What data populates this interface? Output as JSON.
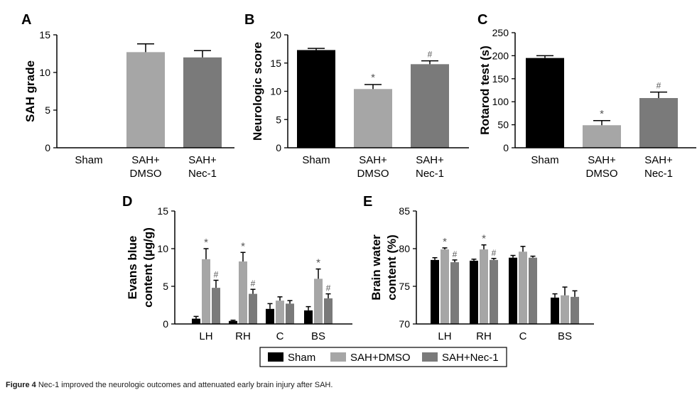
{
  "caption": {
    "label": "Figure 4",
    "text": "Nec-1 improved the neurologic outcomes and attenuated early brain injury after SAH."
  },
  "colors": {
    "sham": "#000000",
    "dmso": "#a6a6a6",
    "nec1": "#7a7a7a"
  },
  "legend": {
    "items": [
      "Sham",
      "SAH+DMSO",
      "SAH+Nec-1"
    ]
  },
  "chart_data": [
    {
      "panel": "A",
      "type": "bar",
      "ylabel": "SAH grade",
      "xlabel": "",
      "ylim": [
        0,
        15
      ],
      "yticks": [
        0,
        5,
        10,
        15
      ],
      "categories": [
        [
          "Sham"
        ],
        [
          "SAH+",
          "DMSO"
        ],
        [
          "SAH+",
          "Nec-1"
        ]
      ],
      "values": [
        0,
        12.7,
        12.0
      ],
      "errors": [
        0,
        1.1,
        0.9
      ],
      "groups": [
        "sham",
        "dmso",
        "nec1"
      ],
      "marks": [
        "",
        "",
        ""
      ]
    },
    {
      "panel": "B",
      "type": "bar",
      "ylabel": "Neurologic score",
      "xlabel": "",
      "ylim": [
        0,
        20
      ],
      "yticks": [
        0,
        5,
        10,
        15,
        20
      ],
      "categories": [
        [
          "Sham"
        ],
        [
          "SAH+",
          "DMSO"
        ],
        [
          "SAH+",
          "Nec-1"
        ]
      ],
      "values": [
        17.3,
        10.4,
        14.8
      ],
      "errors": [
        0.3,
        0.8,
        0.6
      ],
      "groups": [
        "sham",
        "dmso",
        "nec1"
      ],
      "marks": [
        "",
        "*",
        "#"
      ]
    },
    {
      "panel": "C",
      "type": "bar",
      "ylabel": "Rotarod test (s)",
      "xlabel": "",
      "ylim": [
        0,
        250
      ],
      "yticks": [
        0,
        50,
        100,
        150,
        200,
        250
      ],
      "categories": [
        [
          "Sham"
        ],
        [
          "SAH+",
          "DMSO"
        ],
        [
          "SAH+",
          "Nec-1"
        ]
      ],
      "values": [
        195,
        49,
        108
      ],
      "errors": [
        5,
        10,
        13
      ],
      "groups": [
        "sham",
        "dmso",
        "nec1"
      ],
      "marks": [
        "",
        "*",
        "#"
      ]
    },
    {
      "panel": "D",
      "type": "grouped-bar",
      "ylabel": [
        "Evans blue",
        "content (µg/g)"
      ],
      "ylim": [
        0,
        15
      ],
      "yticks": [
        0,
        5,
        10,
        15
      ],
      "categories": [
        "LH",
        "RH",
        "C",
        "BS"
      ],
      "series": [
        {
          "name": "Sham",
          "group": "sham",
          "values": [
            0.7,
            0.4,
            2.0,
            1.8
          ],
          "errors": [
            0.3,
            0.1,
            0.7,
            0.5
          ],
          "marks": [
            "",
            "",
            "",
            ""
          ]
        },
        {
          "name": "SAH+DMSO",
          "group": "dmso",
          "values": [
            8.6,
            8.3,
            3.1,
            6.0
          ],
          "errors": [
            1.4,
            1.2,
            0.5,
            1.3
          ],
          "marks": [
            "*",
            "*",
            "",
            "*"
          ]
        },
        {
          "name": "SAH+Nec-1",
          "group": "nec1",
          "values": [
            4.8,
            4.0,
            2.7,
            3.4
          ],
          "errors": [
            1.0,
            0.6,
            0.4,
            0.6
          ],
          "marks": [
            "#",
            "#",
            "",
            "#"
          ]
        }
      ]
    },
    {
      "panel": "E",
      "type": "grouped-bar",
      "ylabel": [
        "Brain water",
        "content (%)"
      ],
      "ylim": [
        70,
        85
      ],
      "yticks": [
        70,
        75,
        80,
        85
      ],
      "categories": [
        "LH",
        "RH",
        "C",
        "BS"
      ],
      "series": [
        {
          "name": "Sham",
          "group": "sham",
          "values": [
            78.5,
            78.4,
            78.8,
            73.5
          ],
          "errors": [
            0.3,
            0.2,
            0.3,
            0.5
          ],
          "marks": [
            "",
            "",
            "",
            ""
          ]
        },
        {
          "name": "SAH+DMSO",
          "group": "dmso",
          "values": [
            79.9,
            79.9,
            79.6,
            73.8
          ],
          "errors": [
            0.2,
            0.6,
            0.7,
            1.1
          ],
          "marks": [
            "*",
            "*",
            "",
            ""
          ]
        },
        {
          "name": "SAH+Nec-1",
          "group": "nec1",
          "values": [
            78.2,
            78.5,
            78.8,
            73.6
          ],
          "errors": [
            0.3,
            0.2,
            0.2,
            0.8
          ],
          "marks": [
            "#",
            "#",
            "",
            ""
          ]
        }
      ]
    }
  ]
}
